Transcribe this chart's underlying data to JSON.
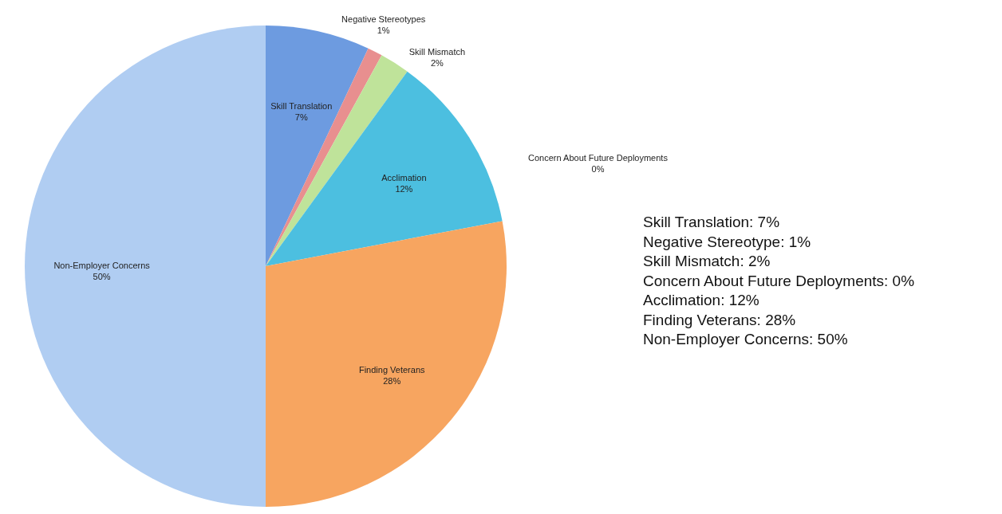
{
  "chart_data": {
    "type": "pie",
    "categories": [
      "Skill Translation",
      "Negative Stereotypes",
      "Skill Mismatch",
      "Concern About Future Deployments",
      "Acclimation",
      "Finding Veterans",
      "Non-Employer Concerns"
    ],
    "values": [
      7,
      1,
      2,
      0,
      12,
      28,
      50
    ],
    "value_labels": [
      "7%",
      "1%",
      "2%",
      "0%",
      "12%",
      "28%",
      "50%"
    ],
    "colors": [
      "#6d9be0",
      "#e88f8f",
      "#bfe39a",
      "#9fd0f0",
      "#4cbfe0",
      "#f7a560",
      "#b0cdf2"
    ],
    "annotations": [
      "Skill Translation: 7%\nNegative Stereotype: 1%\nSkill Mismatch: 2%\nConcern About Future Deployments: 0%\nAcclimation: 12%\nFinding Veterans: 28%\nNon-Employer Concerns: 50%"
    ]
  }
}
